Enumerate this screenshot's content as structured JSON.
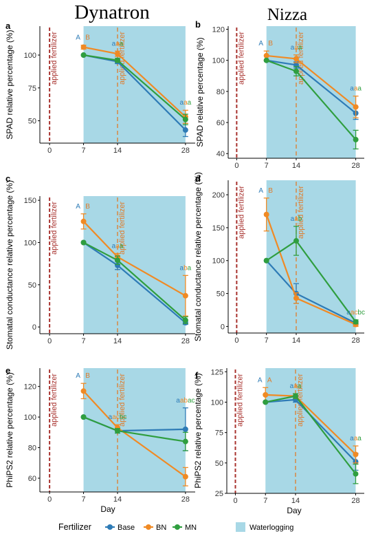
{
  "columns": [
    "Dynatron",
    "Nizza"
  ],
  "x_label": "Day",
  "legend": {
    "title": "Fertilizer",
    "entries": [
      {
        "name": "Base",
        "color": "#2e7bb6"
      },
      {
        "name": "BN",
        "color": "#f08a24"
      },
      {
        "name": "MN",
        "color": "#2f9e3f"
      }
    ],
    "waterlogging_label": "Waterlogging",
    "waterlogging_color": "#a8d8e6"
  },
  "colors": {
    "base": "#2e7bb6",
    "bn": "#f08a24",
    "mn": "#2f9e3f",
    "fert0": "#a8322e",
    "fert14": "#e07b2a",
    "shade": "#a8d8e6",
    "letterA": "#2e7bb6",
    "letterB": "#e07b2a"
  },
  "chart_data": [
    {
      "panel": "a",
      "type": "line",
      "cultivar": "Dynatron",
      "ylabel": "SPAD relative percentage (%)",
      "ylim": [
        33,
        122
      ],
      "yticks": [
        50,
        75,
        100
      ],
      "x": [
        7,
        14,
        28
      ],
      "xlim": [
        -2,
        30
      ],
      "xticks": [
        0,
        7,
        14,
        28
      ],
      "waterlogging": [
        7,
        28
      ],
      "fert_lines": [
        0,
        14
      ],
      "fert_labels": [
        "applied fertilizer",
        "applied fertilizer"
      ],
      "series": [
        {
          "name": "Base",
          "values": [
            100,
            95,
            43
          ],
          "err": [
            0,
            1.5,
            5
          ]
        },
        {
          "name": "BN",
          "values": [
            106,
            101,
            53
          ],
          "err": [
            1.5,
            2,
            5
          ]
        },
        {
          "name": "MN",
          "values": [
            100,
            96,
            51
          ],
          "err": [
            0,
            1.5,
            4
          ]
        }
      ],
      "top_letters": [
        [
          "A",
          "B"
        ],
        [
          "a",
          "a",
          "a"
        ],
        [
          "a",
          "a",
          "a"
        ]
      ]
    },
    {
      "panel": "b",
      "type": "line",
      "cultivar": "Nizza",
      "ylabel": "SPAD relative percentage (%)",
      "ylim": [
        37,
        122
      ],
      "yticks": [
        40,
        60,
        80,
        100,
        120
      ],
      "x": [
        7,
        14,
        28
      ],
      "xlim": [
        -2,
        30
      ],
      "xticks": [
        0,
        7,
        14,
        28
      ],
      "waterlogging": [
        7,
        28
      ],
      "fert_lines": [
        0,
        14
      ],
      "fert_labels": [
        "applied fertilizer",
        "applied fertilizer"
      ],
      "series": [
        {
          "name": "Base",
          "values": [
            100,
            97,
            66
          ],
          "err": [
            0,
            2,
            4
          ]
        },
        {
          "name": "BN",
          "values": [
            103,
            101,
            70
          ],
          "err": [
            3,
            2.5,
            7
          ]
        },
        {
          "name": "MN",
          "values": [
            100,
            93,
            49
          ],
          "err": [
            0,
            3,
            6
          ]
        }
      ],
      "top_letters": [
        [
          "A",
          "B"
        ],
        [
          "a",
          "a",
          "a"
        ],
        [
          "a",
          "a",
          "a"
        ]
      ]
    },
    {
      "panel": "c",
      "type": "line",
      "cultivar": "Dynatron",
      "ylabel": "Stomatal conductance relative percentage (%)",
      "ylim": [
        -8,
        155
      ],
      "yticks": [
        0,
        50,
        100,
        150
      ],
      "x": [
        7,
        14,
        28
      ],
      "xlim": [
        -2,
        30
      ],
      "xticks": [
        0,
        7,
        14,
        28
      ],
      "waterlogging": [
        7,
        28
      ],
      "fert_lines": [
        0,
        14
      ],
      "fert_labels": [
        "applied fertilizer",
        "applied fertilizer"
      ],
      "series": [
        {
          "name": "Base",
          "values": [
            100,
            73,
            5
          ],
          "err": [
            0,
            5,
            2
          ]
        },
        {
          "name": "BN",
          "values": [
            125,
            83,
            37
          ],
          "err": [
            9,
            4,
            24
          ]
        },
        {
          "name": "MN",
          "values": [
            100,
            79,
            8
          ],
          "err": [
            0,
            5,
            4
          ]
        }
      ],
      "top_letters": [
        [
          "A",
          "B"
        ],
        [
          "a",
          "a",
          "a"
        ],
        [
          "a",
          "b",
          "a"
        ]
      ]
    },
    {
      "panel": "d",
      "type": "line",
      "cultivar": "Nizza",
      "ylabel": "Stomatal conductance relative percentage (%)",
      "ylim": [
        -10,
        222
      ],
      "yticks": [
        0,
        50,
        100,
        150,
        200
      ],
      "x": [
        7,
        14,
        28
      ],
      "xlim": [
        -2,
        30
      ],
      "xticks": [
        0,
        7,
        14,
        28
      ],
      "waterlogging": [
        7,
        28
      ],
      "fert_lines": [
        0,
        14
      ],
      "fert_labels": [
        "applied fertilizer",
        "applied fertilizer"
      ],
      "series": [
        {
          "name": "Base",
          "values": [
            100,
            50,
            5
          ],
          "err": [
            0,
            15,
            3
          ]
        },
        {
          "name": "BN",
          "values": [
            170,
            43,
            3
          ],
          "err": [
            25,
            8,
            3
          ]
        },
        {
          "name": "MN",
          "values": [
            100,
            130,
            7
          ],
          "err": [
            0,
            22,
            3
          ]
        }
      ],
      "top_letters": [
        [
          "A",
          "B"
        ],
        [
          "a",
          "a",
          "b"
        ],
        [
          "a",
          "ac",
          "bc"
        ]
      ]
    },
    {
      "panel": "e",
      "type": "line",
      "cultivar": "Dynatron",
      "ylabel": "PhiPS2 relative percentage (%)",
      "ylim": [
        51,
        132
      ],
      "yticks": [
        60,
        80,
        100,
        120
      ],
      "x": [
        7,
        14,
        28
      ],
      "xlim": [
        -2,
        30
      ],
      "xticks": [
        0,
        7,
        14,
        28
      ],
      "waterlogging": [
        7,
        28
      ],
      "fert_lines": [
        0,
        14
      ],
      "fert_labels": [
        "applied fertilizer",
        "applied fertilizer"
      ],
      "series": [
        {
          "name": "Base",
          "values": [
            100,
            91,
            92
          ],
          "err": [
            0,
            1.5,
            14
          ]
        },
        {
          "name": "BN",
          "values": [
            117,
            93,
            61
          ],
          "err": [
            5,
            2,
            6
          ]
        },
        {
          "name": "MN",
          "values": [
            100,
            91,
            84
          ],
          "err": [
            0,
            1.5,
            6
          ]
        }
      ],
      "top_letters": [
        [
          "A",
          "B"
        ],
        [
          "a",
          "ac",
          "bc"
        ],
        [
          "a",
          "ab",
          "ac"
        ]
      ]
    },
    {
      "panel": "f",
      "type": "line",
      "cultivar": "Nizza",
      "ylabel": "PhiPS2 relative percentage (%)",
      "ylim": [
        25,
        128
      ],
      "yticks": [
        25,
        50,
        75,
        100,
        125
      ],
      "x": [
        7,
        14,
        28
      ],
      "xlim": [
        -2,
        30
      ],
      "xticks": [
        0,
        7,
        14,
        28
      ],
      "waterlogging": [
        7,
        28
      ],
      "fert_lines": [
        0,
        14
      ],
      "fert_labels": [
        "applied fertilizer",
        "applied fertilizer"
      ],
      "series": [
        {
          "name": "Base",
          "values": [
            100,
            102,
            51
          ],
          "err": [
            0,
            2,
            7
          ]
        },
        {
          "name": "BN",
          "values": [
            106,
            105,
            57
          ],
          "err": [
            6,
            2,
            7
          ]
        },
        {
          "name": "MN",
          "values": [
            100,
            105,
            41
          ],
          "err": [
            0,
            2,
            8
          ]
        }
      ],
      "top_letters": [
        [
          "A",
          "A"
        ],
        [
          "a",
          "a",
          "a"
        ],
        [
          "a",
          "a",
          "a"
        ]
      ]
    }
  ]
}
